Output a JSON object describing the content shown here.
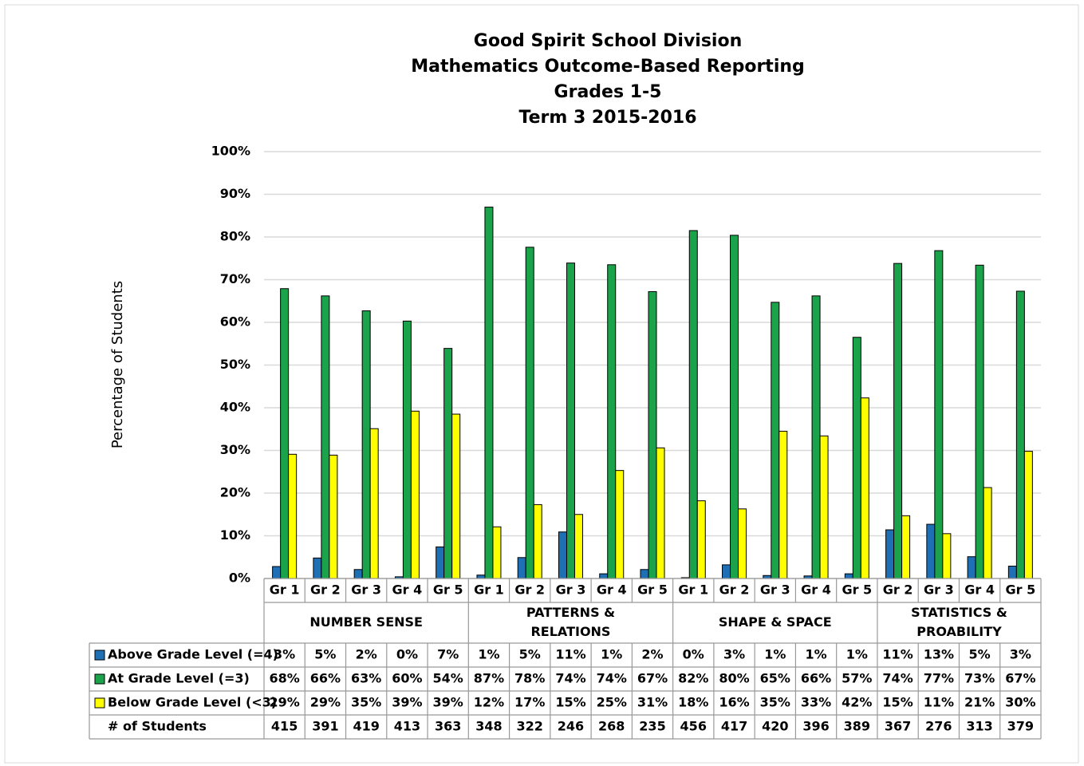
{
  "chart_data": {
    "type": "bar",
    "title": [
      "Good Spirit School Division",
      "Mathematics Outcome-Based Reporting",
      "Grades 1-5",
      "Term 3  2015-2016"
    ],
    "y_label": "Percentage of Students",
    "groups": [
      {
        "name": [
          "NUMBER SENSE"
        ],
        "categories": [
          "Gr 1",
          "Gr 2",
          "Gr 3",
          "Gr 4",
          "Gr 5"
        ]
      },
      {
        "name": [
          "PATTERNS &",
          "RELATIONS"
        ],
        "categories": [
          "Gr 1",
          "Gr 2",
          "Gr 3",
          "Gr 4",
          "Gr 5"
        ]
      },
      {
        "name": [
          "SHAPE & SPACE"
        ],
        "categories": [
          "Gr 1",
          "Gr 2",
          "Gr 3",
          "Gr 4",
          "Gr 5"
        ]
      },
      {
        "name": [
          "STATISTICS &",
          "PROABILITY"
        ],
        "categories": [
          "Gr 2",
          "Gr 3",
          "Gr 4",
          "Gr 5"
        ]
      }
    ],
    "series": [
      {
        "name": "Above Grade Level (=4)",
        "color": "#1f6fb5",
        "values": [
          2.8,
          4.8,
          2.1,
          0.4,
          7.4,
          0.8,
          4.9,
          10.9,
          1.1,
          2.1,
          0.2,
          3.2,
          0.7,
          0.6,
          1.1,
          11.4,
          12.7,
          5.1,
          2.9
        ],
        "value_labels": [
          "3%",
          "5%",
          "2%",
          "0%",
          "7%",
          "1%",
          "5%",
          "11%",
          "1%",
          "2%",
          "0%",
          "3%",
          "1%",
          "1%",
          "1%",
          "11%",
          "13%",
          "5%",
          "3%"
        ]
      },
      {
        "name": "At Grade Level (=3)",
        "color": "#1aa34a",
        "values": [
          67.9,
          66.2,
          62.7,
          60.3,
          53.9,
          87.0,
          77.6,
          73.9,
          73.5,
          67.2,
          81.5,
          80.4,
          64.7,
          66.2,
          56.5,
          73.8,
          76.8,
          73.4,
          67.3
        ],
        "value_labels": [
          "68%",
          "66%",
          "63%",
          "60%",
          "54%",
          "87%",
          "78%",
          "74%",
          "74%",
          "67%",
          "82%",
          "80%",
          "65%",
          "66%",
          "57%",
          "74%",
          "77%",
          "73%",
          "67%"
        ]
      },
      {
        "name": "Below Grade Level (<3)",
        "color": "#ffff00",
        "values": [
          29.1,
          28.9,
          35.1,
          39.2,
          38.5,
          12.1,
          17.3,
          15.0,
          25.3,
          30.6,
          18.2,
          16.3,
          34.5,
          33.4,
          42.3,
          14.7,
          10.5,
          21.3,
          29.8
        ],
        "value_labels": [
          "29%",
          "29%",
          "35%",
          "39%",
          "39%",
          "12%",
          "17%",
          "15%",
          "25%",
          "31%",
          "18%",
          "16%",
          "35%",
          "33%",
          "42%",
          "15%",
          "11%",
          "21%",
          "30%"
        ]
      }
    ],
    "students": {
      "name": "# of Students",
      "values": [
        415,
        391,
        419,
        413,
        363,
        348,
        322,
        246,
        268,
        235,
        456,
        417,
        420,
        396,
        389,
        367,
        276,
        313,
        379
      ]
    },
    "ylim": [
      0,
      100
    ],
    "yticks": [
      {
        "value": 0,
        "label": "0%"
      },
      {
        "value": 10,
        "label": "10%"
      },
      {
        "value": 20,
        "label": "20%"
      },
      {
        "value": 30,
        "label": "30%"
      },
      {
        "value": 40,
        "label": "40%"
      },
      {
        "value": 50,
        "label": "50%"
      },
      {
        "value": 60,
        "label": "60%"
      },
      {
        "value": 70,
        "label": "70%"
      },
      {
        "value": 80,
        "label": "80%"
      },
      {
        "value": 90,
        "label": "90%"
      },
      {
        "value": 100,
        "label": "100%"
      }
    ],
    "grid": true
  }
}
